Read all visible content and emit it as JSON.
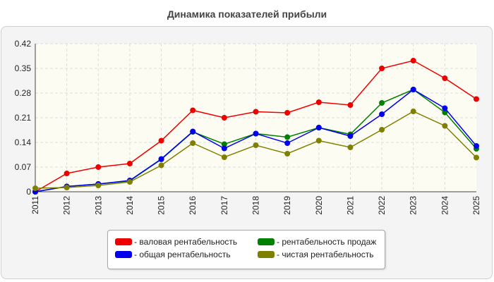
{
  "title": "Динамика показателей прибыли",
  "colors": {
    "panel_bg": "#f4f4f4",
    "plot_bg": "#fcfcf2",
    "grid": "#dddddd"
  },
  "chart_data": {
    "type": "line",
    "x": [
      "2011",
      "2012",
      "2013",
      "2014",
      "2015",
      "2016",
      "2017",
      "2018",
      "2019",
      "2020",
      "2021",
      "2022",
      "2023",
      "2024",
      "2025"
    ],
    "ylim": [
      0,
      0.42
    ],
    "yticks": [
      "0",
      "0.07",
      "0.14",
      "0.21",
      "0.28",
      "0.35",
      "0.42"
    ],
    "grid": true,
    "legend_position": "bottom",
    "series": [
      {
        "name": "- валовая рентабельность",
        "color": "#ee0000",
        "values": [
          0.0,
          0.052,
          0.07,
          0.08,
          0.145,
          0.231,
          0.21,
          0.227,
          0.224,
          0.254,
          0.246,
          0.35,
          0.372,
          0.322,
          0.263
        ]
      },
      {
        "name": "- рентабельность продаж",
        "color": "#008000",
        "values": [
          0.0,
          0.015,
          0.022,
          0.031,
          0.092,
          0.17,
          0.135,
          0.165,
          0.155,
          0.182,
          0.163,
          0.252,
          0.29,
          0.225,
          0.122
        ]
      },
      {
        "name": "- общая рентабельность",
        "color": "#0000ee",
        "values": [
          0.0,
          0.015,
          0.022,
          0.032,
          0.093,
          0.171,
          0.123,
          0.165,
          0.138,
          0.182,
          0.158,
          0.22,
          0.29,
          0.237,
          0.13
        ]
      },
      {
        "name": "- чистая рентабельность",
        "color": "#808000",
        "values": [
          0.01,
          0.012,
          0.018,
          0.028,
          0.075,
          0.138,
          0.098,
          0.132,
          0.108,
          0.145,
          0.126,
          0.176,
          0.228,
          0.187,
          0.097
        ]
      }
    ]
  }
}
